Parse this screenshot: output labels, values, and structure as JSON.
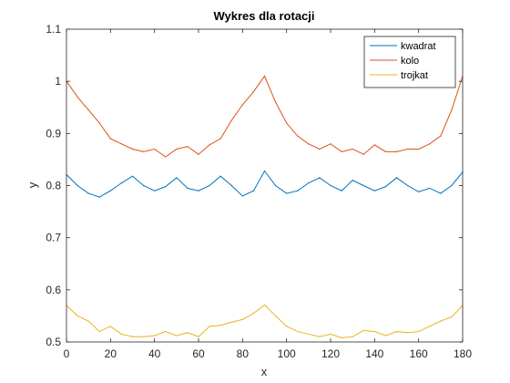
{
  "chart_data": {
    "type": "line",
    "title": "Wykres dla rotacji",
    "xlabel": "x",
    "ylabel": "y",
    "xlim": [
      0,
      180
    ],
    "ylim": [
      0.5,
      1.1
    ],
    "xticks": [
      "0",
      "20",
      "40",
      "60",
      "80",
      "100",
      "120",
      "140",
      "160",
      "180"
    ],
    "yticks": [
      "0.5",
      "0.6",
      "0.7",
      "0.8",
      "0.9",
      "1",
      "1.1"
    ],
    "grid": false,
    "legend_position": "top-right",
    "x": [
      0,
      5,
      10,
      15,
      20,
      25,
      30,
      35,
      40,
      45,
      50,
      55,
      60,
      65,
      70,
      75,
      80,
      85,
      90,
      95,
      100,
      105,
      110,
      115,
      120,
      125,
      130,
      135,
      140,
      145,
      150,
      155,
      160,
      165,
      170,
      175,
      180
    ],
    "series": [
      {
        "name": "kwadrat",
        "color": "#0072BD",
        "values": [
          0.821,
          0.8,
          0.785,
          0.778,
          0.79,
          0.805,
          0.818,
          0.8,
          0.79,
          0.798,
          0.815,
          0.795,
          0.79,
          0.8,
          0.818,
          0.8,
          0.78,
          0.79,
          0.828,
          0.8,
          0.785,
          0.79,
          0.805,
          0.815,
          0.8,
          0.79,
          0.81,
          0.8,
          0.79,
          0.798,
          0.815,
          0.8,
          0.788,
          0.795,
          0.785,
          0.8,
          0.826
        ]
      },
      {
        "name": "kolo",
        "color": "#D95319",
        "values": [
          1.0,
          0.97,
          0.945,
          0.92,
          0.89,
          0.88,
          0.87,
          0.865,
          0.87,
          0.855,
          0.87,
          0.875,
          0.86,
          0.878,
          0.89,
          0.925,
          0.955,
          0.98,
          1.01,
          0.96,
          0.92,
          0.895,
          0.88,
          0.87,
          0.88,
          0.865,
          0.87,
          0.86,
          0.878,
          0.865,
          0.865,
          0.87,
          0.87,
          0.88,
          0.895,
          0.945,
          1.01
        ]
      },
      {
        "name": "trojkat",
        "color": "#EDB120",
        "values": [
          0.57,
          0.55,
          0.54,
          0.52,
          0.53,
          0.515,
          0.51,
          0.51,
          0.512,
          0.52,
          0.512,
          0.518,
          0.51,
          0.53,
          0.532,
          0.538,
          0.543,
          0.555,
          0.571,
          0.55,
          0.53,
          0.52,
          0.515,
          0.51,
          0.515,
          0.508,
          0.51,
          0.522,
          0.52,
          0.512,
          0.52,
          0.518,
          0.52,
          0.53,
          0.54,
          0.548,
          0.57
        ]
      }
    ]
  }
}
